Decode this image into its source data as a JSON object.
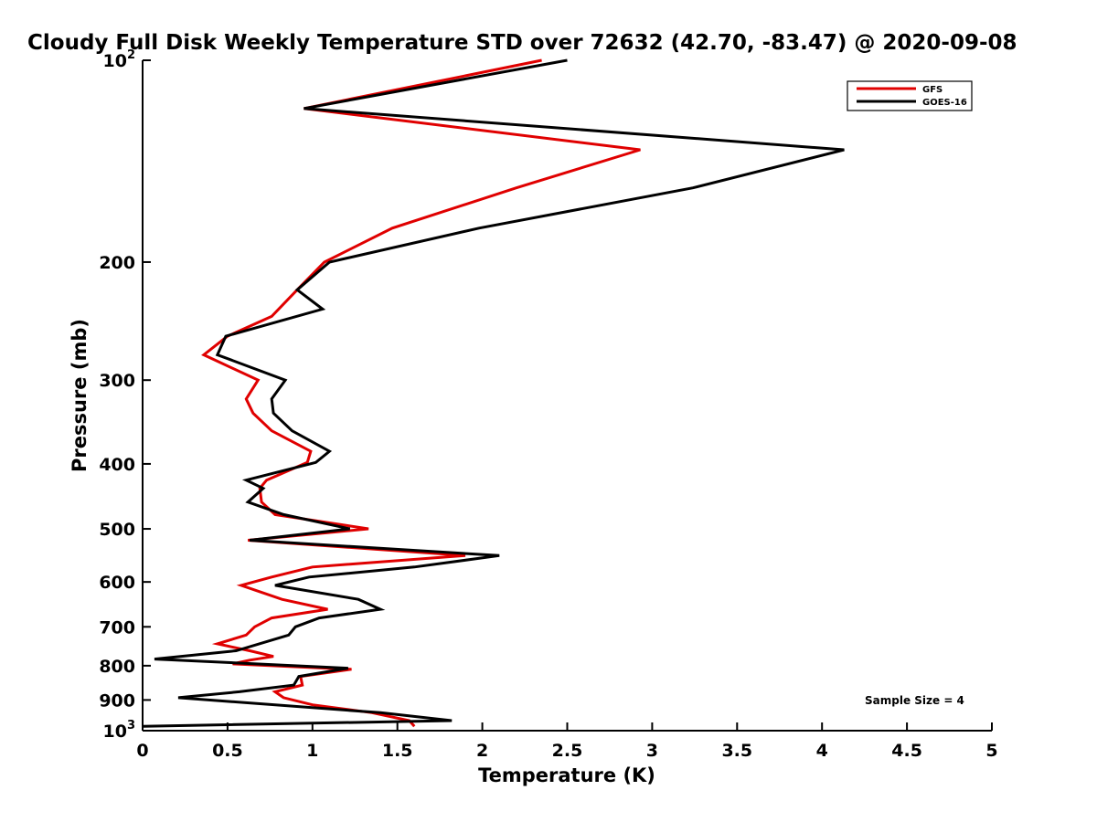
{
  "chart_data": {
    "type": "line",
    "title": "Cloudy Full Disk Weekly Temperature STD over 72632 (42.70, -83.47) @ 2020-09-08",
    "xlabel": "Temperature (K)",
    "ylabel": "Pressure (mb)",
    "xlim": [
      0,
      5
    ],
    "ylim": [
      100,
      1000
    ],
    "y_scale": "log",
    "y_reversed": true,
    "grid": false,
    "legend_position": "top-right",
    "x_ticks": [
      {
        "value": 0,
        "label": "0"
      },
      {
        "value": 0.5,
        "label": "0.5"
      },
      {
        "value": 1,
        "label": "1"
      },
      {
        "value": 1.5,
        "label": "1.5"
      },
      {
        "value": 2,
        "label": "2"
      },
      {
        "value": 2.5,
        "label": "2.5"
      },
      {
        "value": 3,
        "label": "3"
      },
      {
        "value": 3.5,
        "label": "3.5"
      },
      {
        "value": 4,
        "label": "4"
      },
      {
        "value": 4.5,
        "label": "4.5"
      },
      {
        "value": 5,
        "label": "5"
      }
    ],
    "y_ticks": [
      {
        "value": 100,
        "label": "10",
        "sup": "2"
      },
      {
        "value": 200,
        "label": "200",
        "sup": ""
      },
      {
        "value": 300,
        "label": "300",
        "sup": ""
      },
      {
        "value": 400,
        "label": "400",
        "sup": ""
      },
      {
        "value": 500,
        "label": "500",
        "sup": ""
      },
      {
        "value": 600,
        "label": "600",
        "sup": ""
      },
      {
        "value": 700,
        "label": "700",
        "sup": ""
      },
      {
        "value": 800,
        "label": "800",
        "sup": ""
      },
      {
        "value": 900,
        "label": "900",
        "sup": ""
      },
      {
        "value": 1000,
        "label": "10",
        "sup": "3"
      }
    ],
    "series": [
      {
        "name": "GFS",
        "color": "#e00000",
        "points": [
          [
            2.35,
            100
          ],
          [
            0.95,
            118
          ],
          [
            2.93,
            136
          ],
          [
            2.2,
            155
          ],
          [
            1.47,
            178
          ],
          [
            1.07,
            200
          ],
          [
            0.91,
            220
          ],
          [
            0.76,
            241
          ],
          [
            0.5,
            258
          ],
          [
            0.36,
            275
          ],
          [
            0.68,
            300
          ],
          [
            0.61,
            320
          ],
          [
            0.65,
            336
          ],
          [
            0.76,
            357
          ],
          [
            0.99,
            383
          ],
          [
            0.97,
            398
          ],
          [
            0.73,
            423
          ],
          [
            0.69,
            435
          ],
          [
            0.7,
            456
          ],
          [
            0.78,
            476
          ],
          [
            1.33,
            500
          ],
          [
            0.62,
            520
          ],
          [
            1.9,
            548
          ],
          [
            1.0,
            570
          ],
          [
            0.76,
            590
          ],
          [
            0.58,
            607
          ],
          [
            0.82,
            637
          ],
          [
            1.09,
            659
          ],
          [
            0.76,
            679
          ],
          [
            0.66,
            700
          ],
          [
            0.61,
            720
          ],
          [
            0.44,
            742
          ],
          [
            0.63,
            760
          ],
          [
            0.77,
            775
          ],
          [
            0.63,
            785
          ],
          [
            0.53,
            795
          ],
          [
            1.23,
            810
          ],
          [
            0.93,
            830
          ],
          [
            0.94,
            855
          ],
          [
            0.78,
            875
          ],
          [
            0.83,
            893
          ],
          [
            1.0,
            915
          ],
          [
            1.35,
            940
          ],
          [
            1.57,
            966
          ],
          [
            1.6,
            985
          ]
        ]
      },
      {
        "name": "GOES-16",
        "color": "#000000",
        "points": [
          [
            2.5,
            100
          ],
          [
            0.95,
            118
          ],
          [
            4.13,
            136
          ],
          [
            3.24,
            155
          ],
          [
            1.98,
            178
          ],
          [
            1.1,
            200
          ],
          [
            0.91,
            220
          ],
          [
            1.06,
            235
          ],
          [
            0.49,
            258
          ],
          [
            0.44,
            275
          ],
          [
            0.84,
            300
          ],
          [
            0.76,
            320
          ],
          [
            0.77,
            336
          ],
          [
            0.88,
            357
          ],
          [
            1.1,
            383
          ],
          [
            1.02,
            398
          ],
          [
            0.61,
            423
          ],
          [
            0.71,
            435
          ],
          [
            0.62,
            456
          ],
          [
            0.83,
            476
          ],
          [
            1.22,
            500
          ],
          [
            0.63,
            520
          ],
          [
            2.1,
            548
          ],
          [
            1.6,
            570
          ],
          [
            0.98,
            590
          ],
          [
            0.78,
            607
          ],
          [
            1.27,
            637
          ],
          [
            1.4,
            659
          ],
          [
            1.04,
            679
          ],
          [
            0.9,
            700
          ],
          [
            0.86,
            720
          ],
          [
            0.55,
            760
          ],
          [
            0.07,
            782
          ],
          [
            1.21,
            807
          ],
          [
            0.92,
            830
          ],
          [
            0.89,
            855
          ],
          [
            0.57,
            875
          ],
          [
            0.21,
            893
          ],
          [
            1.4,
            940
          ],
          [
            1.82,
            966
          ],
          [
            0.0,
            985
          ]
        ]
      }
    ],
    "annotations": [
      "Sample Size = 4"
    ]
  }
}
